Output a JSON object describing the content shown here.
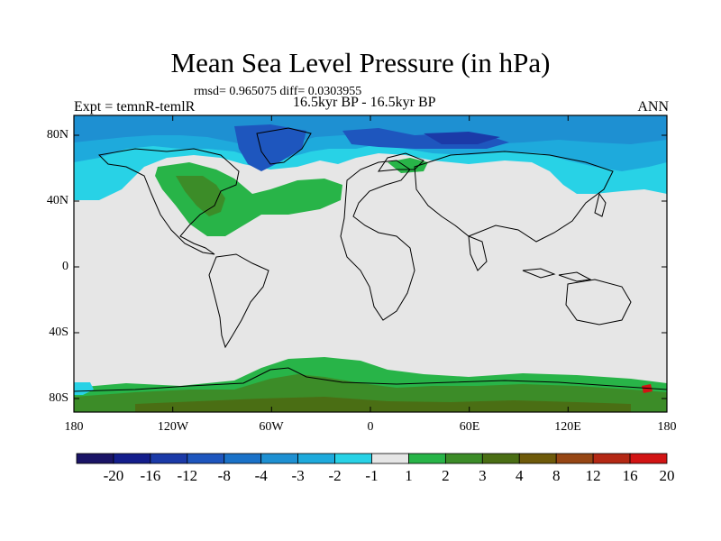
{
  "title": "Mean Sea Level Pressure (in hPa)",
  "stats_text": "rmsd= 0.965075 diff= 0.0303955",
  "left_label": "Expt = temnR-temlR",
  "center_label": "16.5kyr BP - 16.5kyr BP",
  "right_label": "ANN",
  "lat_ticks": [
    "80N",
    "40N",
    "0",
    "40S",
    "80S"
  ],
  "lon_ticks": [
    "180",
    "120W",
    "60W",
    "0",
    "60E",
    "120E",
    "180"
  ],
  "colorbar": {
    "labels": [
      "-20",
      "-16",
      "-12",
      "-8",
      "-4",
      "-3",
      "-2",
      "-1",
      "1",
      "2",
      "3",
      "4",
      "8",
      "12",
      "16",
      "20"
    ],
    "colors": [
      "#1a1466",
      "#141e8c",
      "#1b3aa8",
      "#1e56be",
      "#1a72c8",
      "#1e90d2",
      "#1eaadc",
      "#28d2e6",
      "#e6e6e6",
      "#28b448",
      "#3c8c28",
      "#4a6e14",
      "#6e5a0a",
      "#964614",
      "#b42814",
      "#d21414"
    ]
  },
  "colors": {
    "neutral_fill": "#e6e6e6",
    "coastline": "#000000"
  }
}
